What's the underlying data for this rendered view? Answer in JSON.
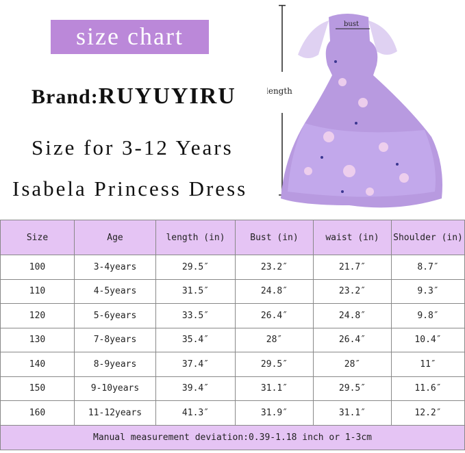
{
  "header": {
    "badge": "size chart",
    "brand_label": "Brand:",
    "brand_name": "RUYUYIRU",
    "subtitle": "Size for 3-12 Years",
    "product": "Isabela Princess Dress"
  },
  "dress": {
    "bust_label": "bust",
    "length_label": "length",
    "color": "#b89ae0"
  },
  "table": {
    "columns": [
      "Size",
      "Age",
      "length (in)",
      "Bust (in)",
      "waist (in)",
      "Shoulder (in)"
    ],
    "rows": [
      [
        "100",
        "3-4years",
        "29.5″",
        "23.2″",
        "21.7″",
        "8.7″"
      ],
      [
        "110",
        "4-5years",
        "31.5″",
        "24.8″",
        "23.2″",
        "9.3″"
      ],
      [
        "120",
        "5-6years",
        "33.5″",
        "26.4″",
        "24.8″",
        "9.8″"
      ],
      [
        "130",
        "7-8years",
        "35.4″",
        "28″",
        "26.4″",
        "10.4″"
      ],
      [
        "140",
        "8-9years",
        "37.4″",
        "29.5″",
        "28″",
        "11″"
      ],
      [
        "150",
        "9-10years",
        "39.4″",
        "31.1″",
        "29.5″",
        "11.6″"
      ],
      [
        "160",
        "11-12years",
        "41.3″",
        "31.9″",
        "31.1″",
        "12.2″"
      ]
    ],
    "footer": "Manual measurement deviation:0.39-1.18 inch or 1-3cm"
  }
}
